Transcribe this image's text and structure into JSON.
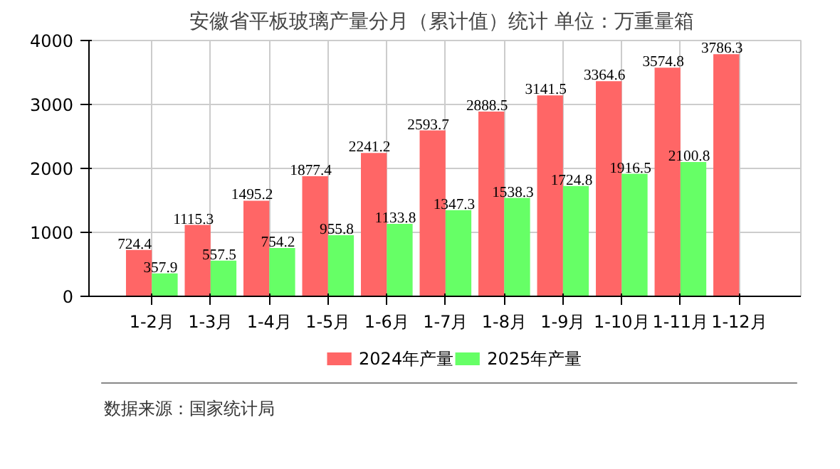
{
  "chart_data": {
    "type": "bar",
    "title": "安徽省平板玻璃产量分月（累计值）统计  单位：万重量箱",
    "categories": [
      "1-2月",
      "1-3月",
      "1-4月",
      "1-5月",
      "1-6月",
      "1-7月",
      "1-8月",
      "1-9月",
      "1-10月",
      "1-11月",
      "1-12月"
    ],
    "series": [
      {
        "name": "2024年产量",
        "color": "#ff6666",
        "values": [
          724.4,
          1115.3,
          1495.2,
          1877.4,
          2241.2,
          2593.7,
          2888.5,
          3141.5,
          3364.6,
          3574.8,
          3786.3
        ]
      },
      {
        "name": "2025年产量",
        "color": "#66ff66",
        "values": [
          357.9,
          557.5,
          754.2,
          955.8,
          1133.8,
          1347.3,
          1538.3,
          1724.8,
          1916.5,
          2100.8,
          null
        ]
      }
    ],
    "ylim": [
      0,
      4000
    ],
    "yticks": [
      0,
      1000,
      2000,
      3000,
      4000
    ],
    "grid": true,
    "legend": "bottom",
    "data_labels": true,
    "annotations": [
      "数据来源：国家统计局"
    ]
  }
}
